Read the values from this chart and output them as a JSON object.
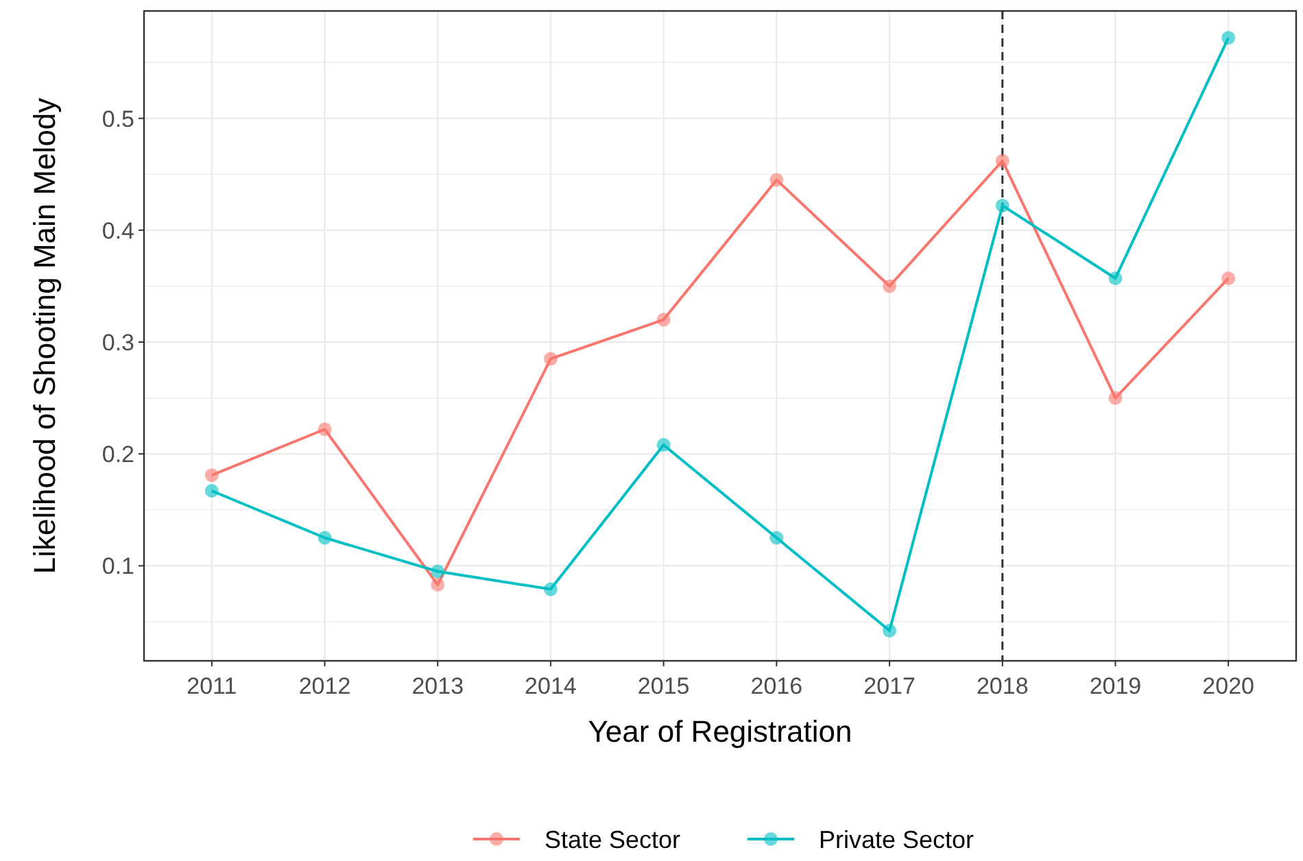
{
  "chart_data": {
    "type": "line",
    "xlabel": "Year of Registration",
    "ylabel": "Likelihood of Shooting Main Melody",
    "categories": [
      "2011",
      "2012",
      "2013",
      "2014",
      "2015",
      "2016",
      "2017",
      "2018",
      "2019",
      "2020"
    ],
    "series": [
      {
        "name": "State Sector",
        "color": "#f8766d",
        "values": [
          0.181,
          0.222,
          0.083,
          0.285,
          0.32,
          0.445,
          0.35,
          0.462,
          0.25,
          0.357
        ]
      },
      {
        "name": "Private Sector",
        "color": "#00bfc4",
        "values": [
          0.167,
          0.125,
          0.095,
          0.079,
          0.208,
          0.125,
          0.042,
          0.422,
          0.357,
          0.572
        ]
      }
    ],
    "ylim": [
      0.015,
      0.596
    ],
    "yticks": [
      0.1,
      0.2,
      0.3,
      0.4,
      0.5
    ],
    "grid": true,
    "legend": "bottom",
    "marker": "circle",
    "line_style": "solid",
    "ref_lines": [
      {
        "axis": "x",
        "value": "2018",
        "line_style": "dashed",
        "color": "#333333"
      }
    ]
  }
}
